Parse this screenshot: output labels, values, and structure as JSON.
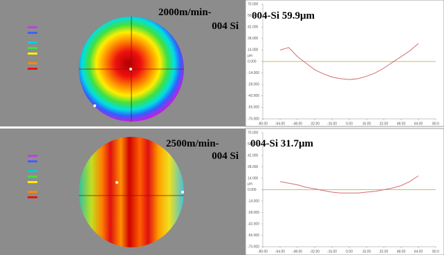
{
  "panels": [
    {
      "label_lines": [
        "2000m/min-",
        "004 Si"
      ],
      "chart": {
        "type": "line",
        "title": "004-Si 59.9μm",
        "y_unit": "μm",
        "color": "#d46a6a",
        "x": [
          -64,
          -56,
          -48,
          -40,
          -32,
          -24,
          -16,
          -8,
          0,
          8,
          16,
          24,
          32,
          40,
          48,
          56,
          64
        ],
        "values": [
          14,
          17,
          6,
          -2,
          -10,
          -15,
          -19,
          -21,
          -22,
          -21,
          -18,
          -14,
          -8,
          -1,
          6,
          13,
          22
        ],
        "xlim": [
          -80,
          80
        ],
        "ylim": [
          -70,
          70
        ],
        "xticks": [
          {
            "value": -80,
            "label": "-80.00"
          },
          {
            "value": -64,
            "label": "-64.00"
          },
          {
            "value": -48,
            "label": "-48.00"
          },
          {
            "value": -32,
            "label": "-32.00"
          },
          {
            "value": -16,
            "label": "-16.00"
          },
          {
            "value": 0,
            "label": "0.00"
          },
          {
            "value": 16,
            "label": "16.00"
          },
          {
            "value": 32,
            "label": "32.00"
          },
          {
            "value": 48,
            "label": "48.00"
          },
          {
            "value": 64,
            "label": "64.00"
          },
          {
            "value": 80,
            "label": "80.0"
          }
        ],
        "yticks": [
          {
            "value": 70,
            "label": "70.000"
          },
          {
            "value": 56,
            "label": "56.000"
          },
          {
            "value": 42,
            "label": "42.000"
          },
          {
            "value": 28,
            "label": "28.000"
          },
          {
            "value": 14,
            "label": "14.000"
          },
          {
            "value": 0,
            "label": "0.000"
          },
          {
            "value": -14,
            "label": "-14.000"
          },
          {
            "value": -28,
            "label": "-28.000"
          },
          {
            "value": -42,
            "label": "-42.000"
          },
          {
            "value": -56,
            "label": "-56.000"
          },
          {
            "value": -70,
            "label": "-70.000"
          }
        ]
      }
    },
    {
      "label_lines": [
        "2500m/min-",
        "004 Si"
      ],
      "chart": {
        "type": "line",
        "title": "004-Si 31.7μm",
        "y_unit": "μm",
        "color": "#d46a6a",
        "x": [
          -64,
          -56,
          -48,
          -40,
          -32,
          -24,
          -16,
          -8,
          0,
          8,
          16,
          24,
          32,
          40,
          48,
          56,
          64
        ],
        "values": [
          10,
          8,
          6,
          3,
          1,
          -1,
          -3,
          -4,
          -4,
          -4,
          -3,
          -2,
          0,
          2,
          5,
          10,
          17
        ],
        "xlim": [
          -80,
          80
        ],
        "ylim": [
          -70,
          70
        ],
        "xticks": [
          {
            "value": -80,
            "label": "-80.00"
          },
          {
            "value": -64,
            "label": "-64.00"
          },
          {
            "value": -48,
            "label": "-48.00"
          },
          {
            "value": -32,
            "label": "-32.00"
          },
          {
            "value": -16,
            "label": "-16.00"
          },
          {
            "value": 0,
            "label": "0.00"
          },
          {
            "value": 16,
            "label": "16.00"
          },
          {
            "value": 32,
            "label": "32.00"
          },
          {
            "value": 48,
            "label": "48.00"
          },
          {
            "value": 64,
            "label": "64.00"
          },
          {
            "value": 80,
            "label": "80.0"
          }
        ],
        "yticks": [
          {
            "value": 70,
            "label": "70.000"
          },
          {
            "value": 56,
            "label": "56.000"
          },
          {
            "value": 42,
            "label": "42.000"
          },
          {
            "value": 28,
            "label": "28.000"
          },
          {
            "value": 14,
            "label": "14.000"
          },
          {
            "value": 0,
            "label": "0.000"
          },
          {
            "value": -14,
            "label": "-14.000"
          },
          {
            "value": -28,
            "label": "-28.000"
          },
          {
            "value": -42,
            "label": "-42.000"
          },
          {
            "value": -56,
            "label": "-56.000"
          },
          {
            "value": -70,
            "label": "-70.000"
          }
        ]
      }
    }
  ]
}
